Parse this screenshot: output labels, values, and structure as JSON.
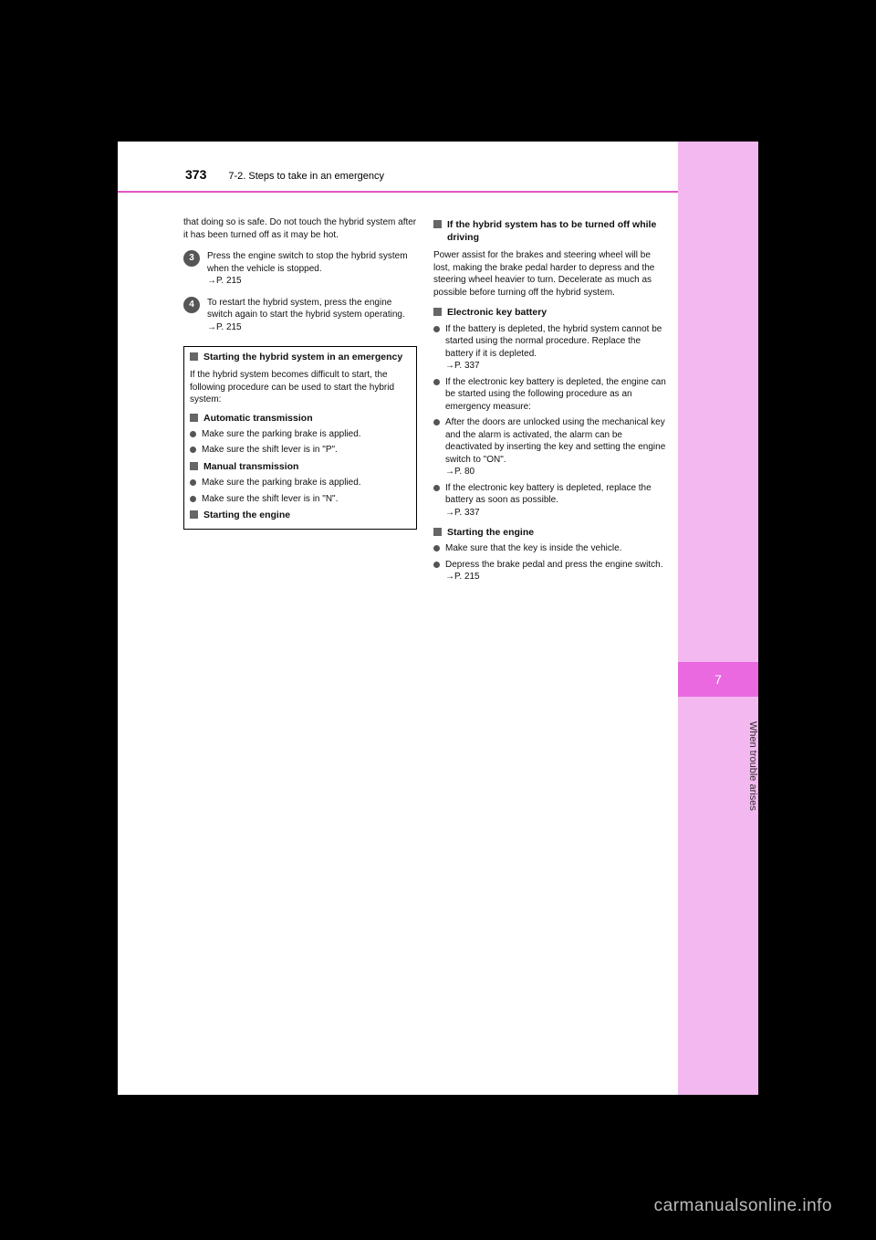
{
  "header": {
    "pagenum": "373",
    "crumb": "7-2. Steps to take in an emergency"
  },
  "tab": {
    "num": "7",
    "label": "When trouble arises"
  },
  "left": {
    "intro": "that doing so is safe. Do not touch the hybrid system after it has been turned off as it may be hot.",
    "step3": "Press the engine switch to stop the hybrid system when the vehicle is stopped.",
    "step3_ref": "→P. 215",
    "step4": "To restart the hybrid system, press the engine switch again to start the hybrid system operating.",
    "step4_ref": "→P. 215",
    "boxed_title": "Starting the hybrid system in an emergency",
    "boxed_para": "If the hybrid system becomes difficult to start, the following procedure can be used to start the hybrid system:",
    "n1_title": "Automatic transmission",
    "n1_b1": "Make sure the parking brake is applied.",
    "n1_b2": "Make sure the shift lever is in \"P\".",
    "n2_title": "Manual transmission",
    "n2_b1": "Make sure the parking brake is applied.",
    "n2_b2": "Make sure the shift lever is in \"N\".",
    "n3_title": "Starting the engine"
  },
  "right": {
    "n4_title": "If the hybrid system has to be turned off while driving",
    "n4_para": "Power assist for the brakes and steering wheel will be lost, making the brake pedal harder to depress and the steering wheel heavier to turn. Decelerate as much as possible before turning off the hybrid system.",
    "n5_title": "Electronic key battery",
    "n5_b1": "If the battery is depleted, the hybrid system cannot be started using the normal procedure. Replace the battery if it is depleted.",
    "n5_ref1": "→P. 337",
    "n5_b2": "If the electronic key battery is depleted, the engine can be started using the following procedure as an emergency measure:",
    "n5_b3": "After the doors are unlocked using the mechanical key and the alarm is activated, the alarm can be deactivated by inserting the key and setting the engine switch to \"ON\".",
    "n5_ref3": "→P. 80",
    "n5_b4": "If the electronic key battery is depleted, replace the battery as soon as possible.",
    "n5_ref4": "→P. 337",
    "n6_title": "Starting the engine",
    "n6_b1": "Make sure that the key is inside the vehicle.",
    "n6_b2": "Depress the brake pedal and press the engine switch.",
    "n6_ref": "→P. 215"
  },
  "watermark": "carmanualsonline.info"
}
